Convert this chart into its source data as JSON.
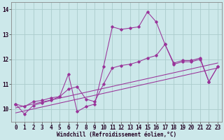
{
  "background_color": "#cce8ea",
  "grid_color": "#aacccc",
  "line_color": "#993399",
  "xlim": [
    -0.5,
    23.5
  ],
  "ylim": [
    9.5,
    14.3
  ],
  "yticks": [
    10,
    11,
    12,
    13,
    14
  ],
  "xticks": [
    0,
    1,
    2,
    3,
    4,
    5,
    6,
    7,
    8,
    9,
    10,
    11,
    12,
    13,
    14,
    15,
    16,
    17,
    18,
    19,
    20,
    21,
    22,
    23
  ],
  "xlabel": "Windchill (Refroidissement éolien,°C)",
  "xlabel_fontsize": 5.5,
  "tick_fontsize": 5.5,
  "series1_x": [
    0,
    1,
    2,
    3,
    4,
    5,
    6,
    7,
    8,
    9,
    10,
    11,
    12,
    13,
    14,
    15,
    16,
    17,
    18,
    19,
    20,
    21,
    22,
    23
  ],
  "series1_y": [
    10.2,
    9.8,
    10.15,
    10.25,
    10.35,
    10.5,
    11.4,
    9.9,
    10.1,
    10.2,
    11.7,
    13.3,
    13.2,
    13.25,
    13.3,
    13.9,
    13.5,
    12.6,
    11.8,
    11.9,
    11.9,
    12.0,
    11.1,
    11.7
  ],
  "series2_x": [
    0,
    1,
    2,
    3,
    4,
    5,
    6,
    7,
    8,
    9,
    10,
    11,
    12,
    13,
    14,
    15,
    16,
    17,
    18,
    19,
    20,
    21,
    22,
    23
  ],
  "series2_y": [
    10.2,
    10.1,
    10.3,
    10.35,
    10.45,
    10.5,
    10.8,
    10.9,
    10.4,
    10.3,
    11.0,
    11.65,
    11.75,
    11.8,
    11.9,
    12.05,
    12.15,
    12.6,
    11.85,
    11.95,
    11.95,
    12.05,
    11.1,
    11.7
  ],
  "series3_x": [
    0,
    23
  ],
  "series3_y": [
    10.05,
    11.85
  ],
  "series4_x": [
    0,
    23
  ],
  "series4_y": [
    9.85,
    11.65
  ]
}
